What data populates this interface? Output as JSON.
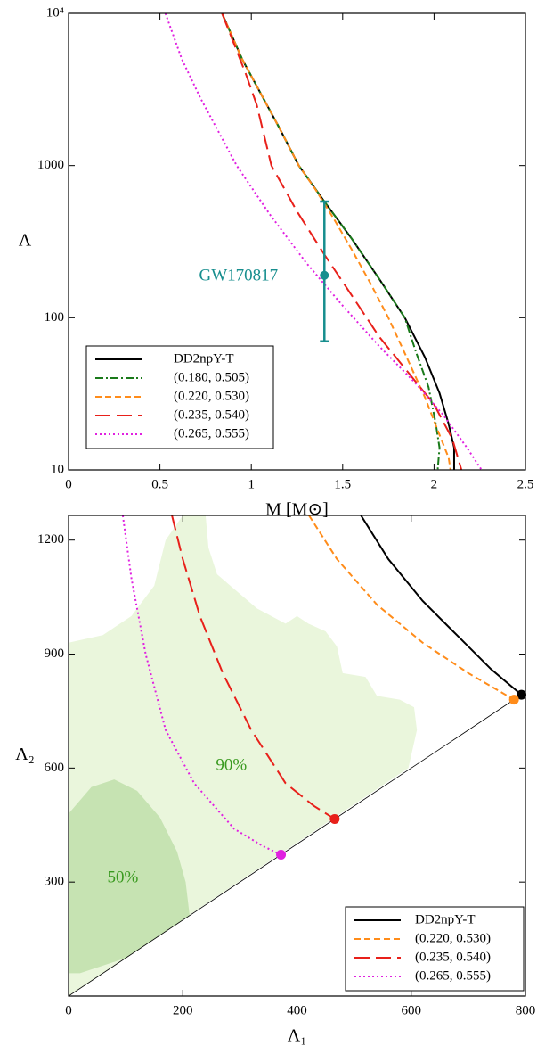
{
  "chart_data": [
    {
      "type": "line",
      "yscale": "log",
      "xlabel": "M [M⊙]",
      "ylabel": "Λ",
      "xlim": [
        0,
        2.5
      ],
      "ylim": [
        10,
        10000
      ],
      "xticks": [
        0,
        0.5,
        1,
        1.5,
        2,
        2.5
      ],
      "yticks": [
        10,
        100,
        1000,
        {
          "value": 10000,
          "label": "10⁴"
        }
      ],
      "legend": "lower left",
      "series": [
        {
          "name": "DD2npY-T",
          "color": "#000000",
          "dash": "solid",
          "x": [
            0.84,
            0.95,
            1.05,
            1.15,
            1.26,
            1.4,
            1.55,
            1.7,
            1.84,
            1.95,
            2.03,
            2.08,
            2.11,
            2.11
          ],
          "values": [
            10000,
            5000,
            3000,
            1800,
            1000,
            580,
            330,
            180,
            100,
            55,
            32,
            20,
            14,
            10
          ]
        },
        {
          "name": "(0.180, 0.505)",
          "color": "#1a7a1a",
          "dash": "dashdot",
          "x": [
            0.84,
            0.95,
            1.05,
            1.15,
            1.26,
            1.4,
            1.55,
            1.7,
            1.84,
            1.9,
            1.97,
            2.01,
            2.03,
            2.02
          ],
          "values": [
            10000,
            5000,
            3000,
            1800,
            1000,
            580,
            330,
            180,
            100,
            60,
            35,
            20,
            14,
            10
          ]
        },
        {
          "name": "(0.220, 0.530)",
          "color": "#ff8c1a",
          "dash": "dashed",
          "x": [
            0.84,
            0.95,
            1.05,
            1.15,
            1.26,
            1.35,
            1.45,
            1.55,
            1.65,
            1.75,
            1.85,
            1.95,
            2.03,
            2.08,
            2.09
          ],
          "values": [
            10000,
            5000,
            3000,
            1800,
            1000,
            700,
            450,
            280,
            170,
            100,
            55,
            30,
            17,
            12,
            10
          ]
        },
        {
          "name": "(0.235, 0.540)",
          "color": "#e8201a",
          "dash": "longdash",
          "x": [
            0.84,
            0.97,
            1.03,
            1.11,
            1.25,
            1.4,
            1.55,
            1.7,
            1.85,
            2.0,
            2.1,
            2.15
          ],
          "values": [
            10000,
            4000,
            2500,
            1000,
            500,
            260,
            140,
            75,
            45,
            27,
            16,
            10
          ]
        },
        {
          "name": "(0.265, 0.555)",
          "color": "#e020e0",
          "dash": "dotted",
          "x": [
            0.53,
            0.62,
            0.72,
            0.92,
            1.1,
            1.3,
            1.5,
            1.7,
            1.9,
            2.05,
            2.18,
            2.26
          ],
          "values": [
            10000,
            5000,
            2800,
            1000,
            480,
            230,
            120,
            65,
            37,
            23,
            14,
            10
          ]
        }
      ],
      "errorbar": {
        "x": 1.4,
        "y": 190,
        "lower": 70,
        "upper": 580,
        "color": "#178e8e"
      },
      "annotations": [
        {
          "text": "GW170817",
          "x": 0.93,
          "y": 187,
          "color": "#178e8e"
        }
      ]
    },
    {
      "type": "line",
      "xlabel": "Λ₁",
      "ylabel": "Λ₂",
      "xlim": [
        0,
        800
      ],
      "ylim": [
        0,
        1265
      ],
      "xticks": [
        0,
        200,
        400,
        600,
        800
      ],
      "yticks": [
        300,
        600,
        900,
        1200
      ],
      "legend": "lower right",
      "endpoint_markers": true,
      "diagonal": true,
      "regions": [
        {
          "color": "#eaf6dc",
          "points": [
            [
              0,
              930
            ],
            [
              60,
              950
            ],
            [
              110,
              1000
            ],
            [
              150,
              1080
            ],
            [
              170,
              1200
            ],
            [
              200,
              1265
            ],
            [
              240,
              1265
            ],
            [
              245,
              1180
            ],
            [
              260,
              1110
            ],
            [
              330,
              1020
            ],
            [
              380,
              980
            ],
            [
              400,
              1000
            ],
            [
              420,
              980
            ],
            [
              450,
              960
            ],
            [
              470,
              920
            ],
            [
              480,
              850
            ],
            [
              520,
              840
            ],
            [
              540,
              790
            ],
            [
              580,
              780
            ],
            [
              605,
              760
            ],
            [
              610,
              700
            ],
            [
              595,
              600
            ],
            [
              0,
              0
            ]
          ]
        },
        {
          "color": "#c6e3b2",
          "points": [
            [
              0,
              480
            ],
            [
              40,
              550
            ],
            [
              80,
              570
            ],
            [
              120,
              540
            ],
            [
              160,
              470
            ],
            [
              190,
              380
            ],
            [
              205,
              300
            ],
            [
              212,
              212
            ],
            [
              100,
              100
            ],
            [
              20,
              60
            ],
            [
              0,
              60
            ]
          ]
        }
      ],
      "series": [
        {
          "name": "DD2npY-T",
          "color": "#000000",
          "dash": "solid",
          "x": [
            512,
            560,
            620,
            680,
            740,
            793
          ],
          "values": [
            1265,
            1150,
            1040,
            950,
            860,
            793
          ]
        },
        {
          "name": "(0.220, 0.530)",
          "color": "#ff8c1a",
          "dash": "dashed",
          "x": [
            421,
            470,
            540,
            620,
            700,
            780
          ],
          "values": [
            1265,
            1150,
            1030,
            930,
            850,
            780
          ]
        },
        {
          "name": "(0.235, 0.540)",
          "color": "#e8201a",
          "dash": "longdash",
          "x": [
            181,
            200,
            230,
            270,
            320,
            380,
            430,
            466
          ],
          "values": [
            1265,
            1150,
            1000,
            850,
            700,
            560,
            500,
            466
          ]
        },
        {
          "name": "(0.265, 0.555)",
          "color": "#e020e0",
          "dash": "dotted",
          "x": [
            95,
            110,
            135,
            170,
            220,
            290,
            340,
            372
          ],
          "values": [
            1265,
            1100,
            900,
            700,
            560,
            440,
            395,
            372
          ]
        }
      ],
      "annotations": [
        {
          "text": "90%",
          "x": 285,
          "y": 605,
          "color": "#3a9a20"
        },
        {
          "text": "50%",
          "x": 95,
          "y": 310,
          "color": "#3a9a20"
        }
      ]
    }
  ]
}
